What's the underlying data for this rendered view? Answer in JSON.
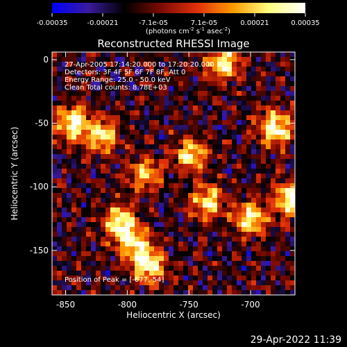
{
  "footer_timestamp": "29-Apr-2022 11:39",
  "colorbar": {
    "tick_labels": [
      "-0.00035",
      "-0.00021",
      "-7.1e-05",
      "7.1e-05",
      "0.00021",
      "0.00035"
    ],
    "unit_parts": [
      "(photons cm",
      "-2",
      " s",
      "-1",
      " asec",
      "-2",
      ")"
    ],
    "colors": [
      "#0000ff",
      "#3b1b9e",
      "#000000",
      "#7a0a00",
      "#e0300a",
      "#ff9a00",
      "#ffff80",
      "#ffffff"
    ]
  },
  "chart_data": {
    "type": "heatmap",
    "title": "Reconstructed RHESSI Image",
    "xlabel": "Heliocentric X (arcsec)",
    "ylabel": "Heliocentric Y (arcsec)",
    "xlim": [
      -861,
      -664
    ],
    "ylim": [
      -185,
      6
    ],
    "x_ticks": [
      -850,
      -800,
      -750,
      -700
    ],
    "y_ticks": [
      0,
      -50,
      -100,
      -150
    ],
    "x_tick_labels": [
      "-850",
      "-800",
      "-750",
      "-700"
    ],
    "y_tick_labels": [
      "0",
      "-50",
      "-100",
      "-150"
    ],
    "annotations": [
      "27-Apr-2005 17:14:20.000 to 17:20:20.000",
      "Detectors: 3F 4F 5F 6F 7F 8F, Att 0",
      "Energy Range: 25.0 - 50.0 keV",
      "Clean     Total counts: 8.78E+03"
    ],
    "peak_label": "Position of Peak = [-677,-54]",
    "peak": [
      -677,
      -54
    ],
    "value_range": [
      -0.00035,
      0.00035
    ],
    "grid": false,
    "bright_regions": [
      {
        "x": -844,
        "y": -50,
        "v": 0.00035
      },
      {
        "x": -680,
        "y": -54,
        "v": 0.00035
      },
      {
        "x": -783,
        "y": -162,
        "v": 0.00033
      },
      {
        "x": -806,
        "y": -128,
        "v": 0.0003
      },
      {
        "x": -700,
        "y": -125,
        "v": 0.00028
      },
      {
        "x": -722,
        "y": -3,
        "v": 0.0003
      },
      {
        "x": -820,
        "y": -60,
        "v": 0.00026
      },
      {
        "x": -668,
        "y": -110,
        "v": 0.00032
      },
      {
        "x": -748,
        "y": -75,
        "v": 0.00025
      },
      {
        "x": -735,
        "y": -112,
        "v": 0.00026
      },
      {
        "x": -785,
        "y": -90,
        "v": 0.00022
      },
      {
        "x": -795,
        "y": -145,
        "v": 0.00025
      }
    ]
  }
}
